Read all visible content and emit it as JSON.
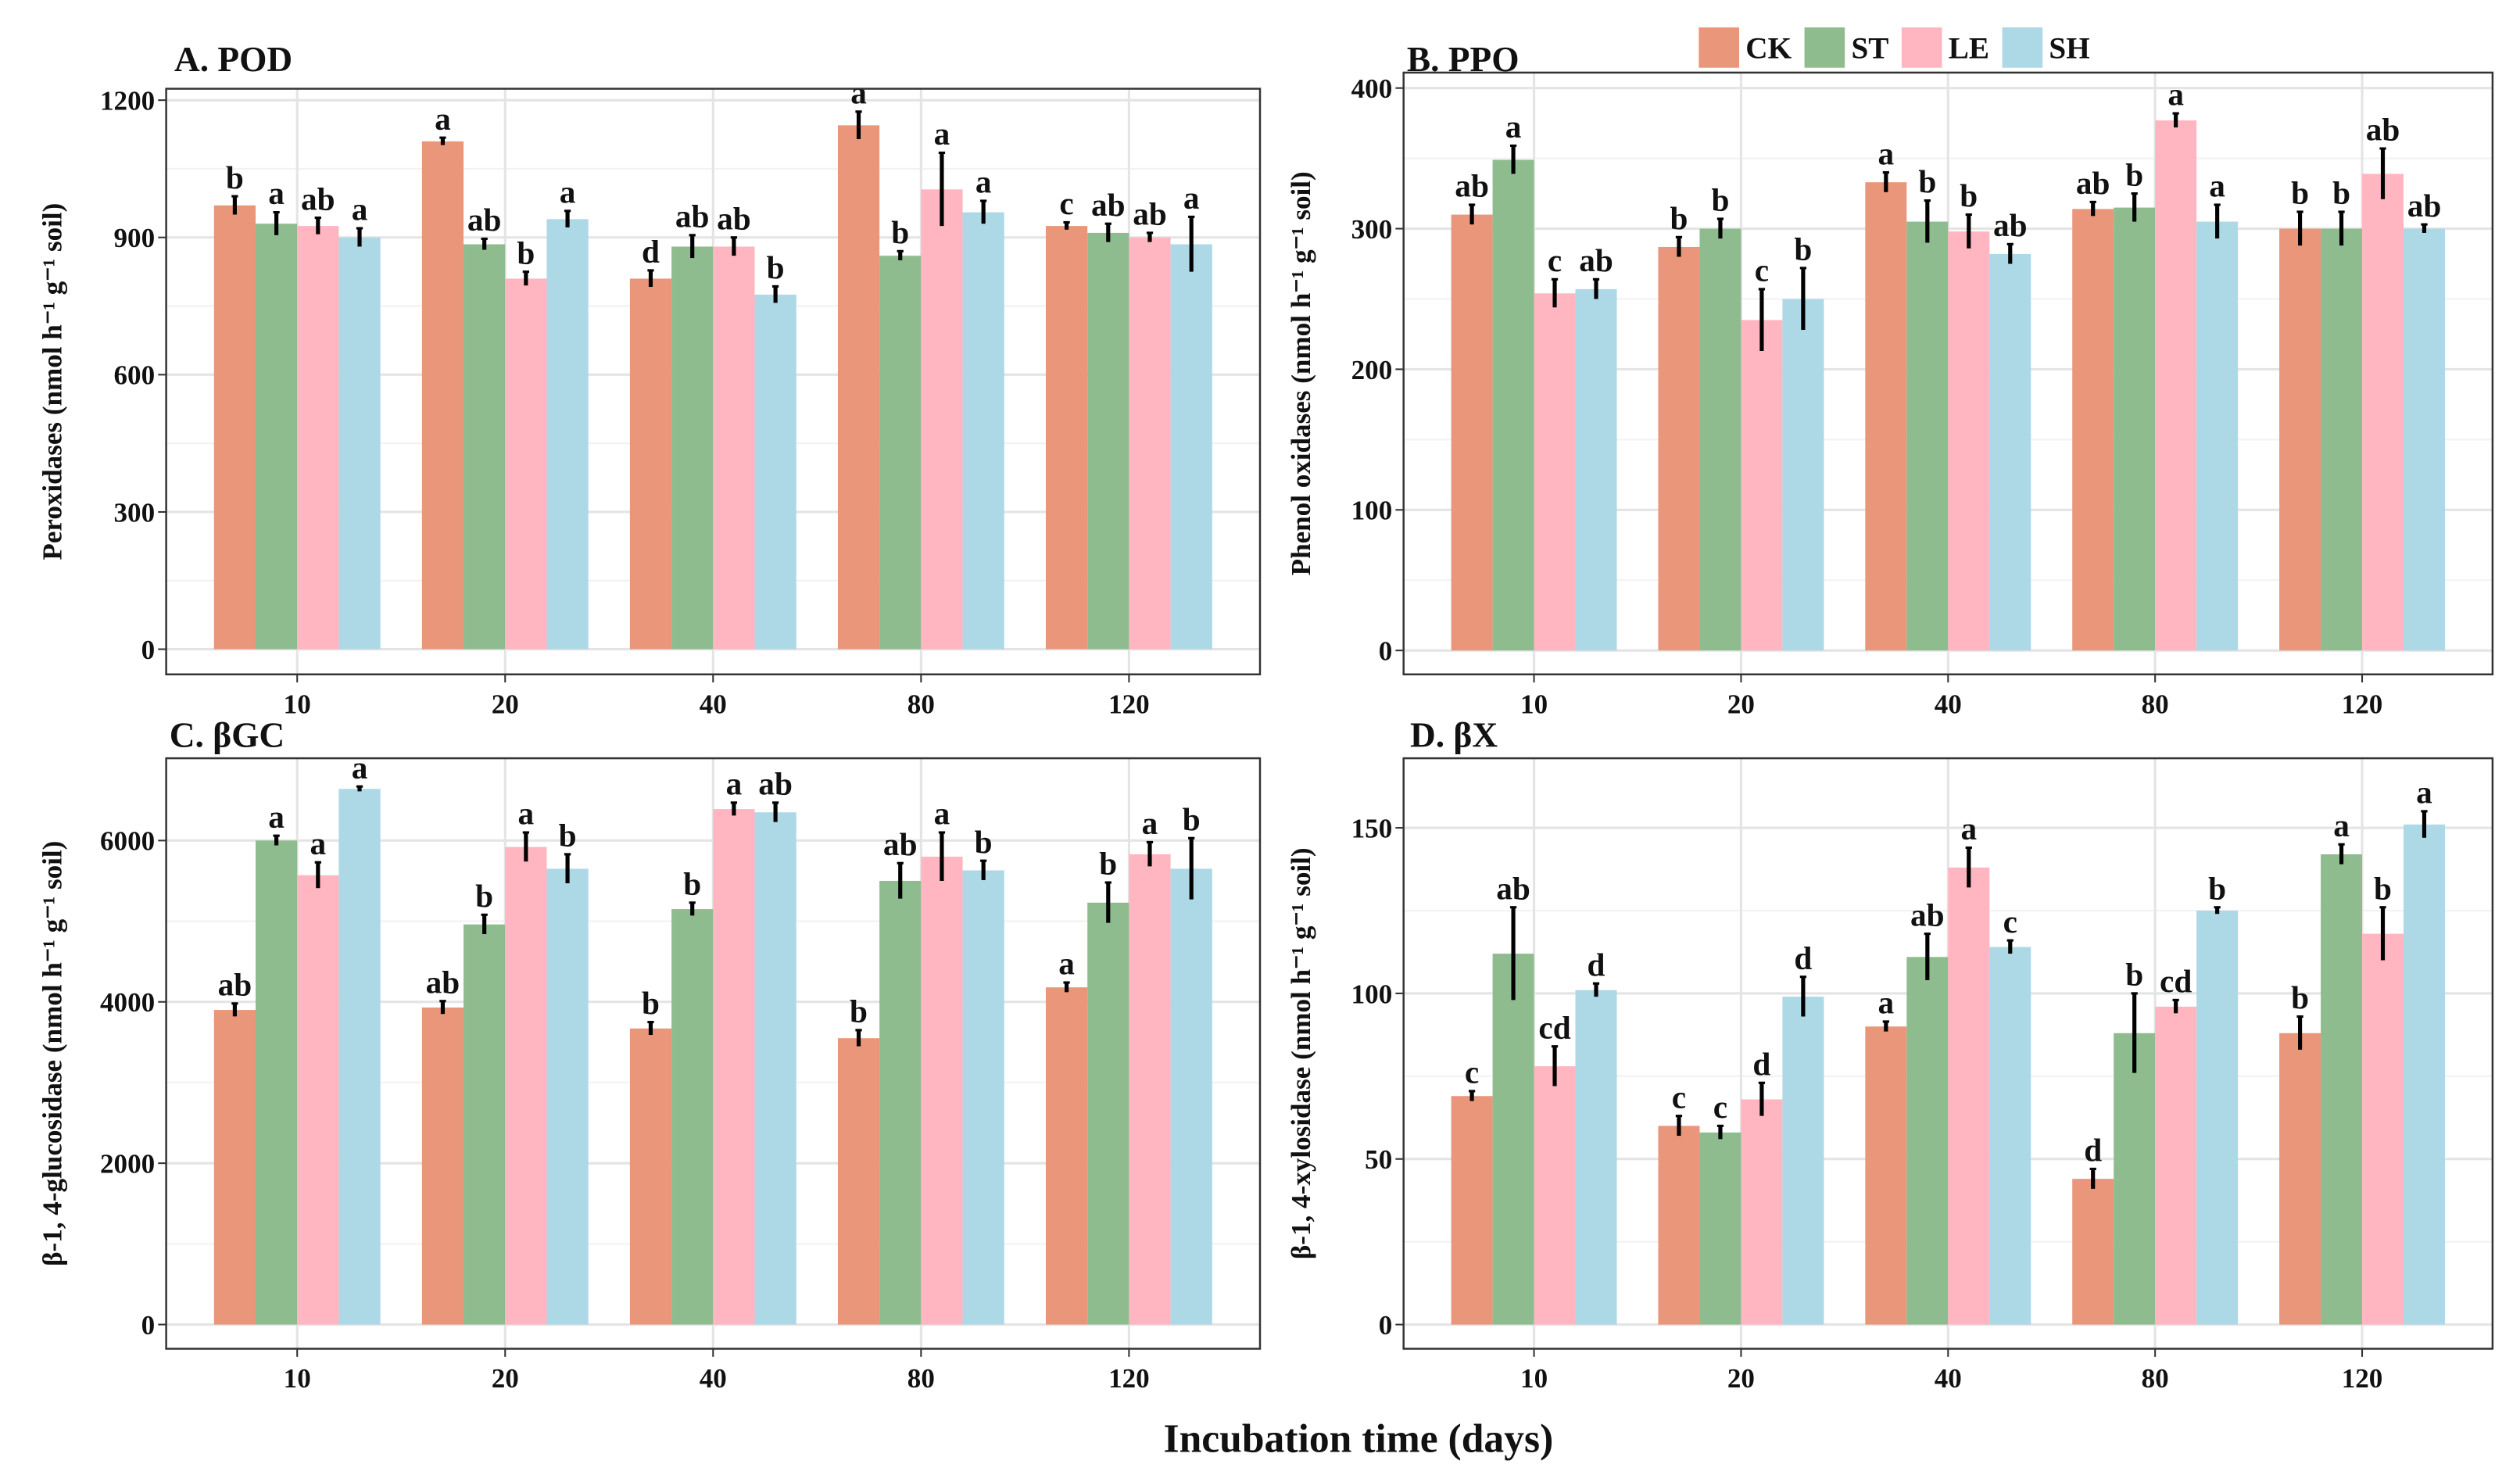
{
  "xlabel": "Incubation time (days)",
  "chart_data": [
    {
      "type": "bar",
      "title": "A. POD",
      "ylabel": "Peroxidases  (nmol h⁻¹ g⁻¹ soil)",
      "categories": [
        "10",
        "20",
        "40",
        "80",
        "120"
      ],
      "ylim": [
        -55,
        1225
      ],
      "yticks": [
        0,
        300,
        600,
        900,
        1200
      ],
      "grid": true,
      "series": [
        {
          "name": "CK",
          "color": "#e9967a",
          "values": [
            970,
            1110,
            810,
            1145,
            925
          ],
          "errors": [
            20,
            8,
            18,
            30,
            8
          ],
          "letters": [
            "b",
            "a",
            "d",
            "a",
            "c"
          ]
        },
        {
          "name": "ST",
          "color": "#8fbc8f",
          "values": [
            930,
            885,
            880,
            860,
            910
          ],
          "errors": [
            25,
            12,
            25,
            10,
            20
          ],
          "letters": [
            "a",
            "ab",
            "ab",
            "b",
            "ab"
          ]
        },
        {
          "name": "LE",
          "color": "#ffb6c1",
          "values": [
            925,
            810,
            880,
            1005,
            900
          ],
          "errors": [
            18,
            15,
            20,
            80,
            10
          ],
          "letters": [
            "ab",
            "b",
            "ab",
            "a",
            "ab"
          ]
        },
        {
          "name": "SH",
          "color": "#add8e6",
          "values": [
            900,
            940,
            775,
            955,
            885
          ],
          "errors": [
            20,
            18,
            18,
            25,
            60
          ],
          "letters": [
            "a",
            "a",
            "b",
            "a",
            "a"
          ]
        }
      ]
    },
    {
      "type": "bar",
      "title": "B. PPO",
      "ylabel": "Phenol oxidases  (nmol h⁻¹ g⁻¹ soil)",
      "categories": [
        "10",
        "20",
        "40",
        "80",
        "120"
      ],
      "ylim": [
        -17,
        411
      ],
      "yticks": [
        0,
        100,
        200,
        300,
        400
      ],
      "grid": true,
      "series": [
        {
          "name": "CK",
          "color": "#e9967a",
          "values": [
            310,
            287,
            333,
            314,
            300
          ],
          "errors": [
            7,
            7,
            7,
            5,
            12
          ],
          "letters": [
            "ab",
            "b",
            "a",
            "ab",
            "b"
          ]
        },
        {
          "name": "ST",
          "color": "#8fbc8f",
          "values": [
            349,
            300,
            305,
            315,
            300
          ],
          "errors": [
            10,
            7,
            15,
            10,
            12
          ],
          "letters": [
            "a",
            "b",
            "b",
            "b",
            "b"
          ]
        },
        {
          "name": "LE",
          "color": "#ffb6c1",
          "values": [
            254,
            235,
            298,
            377,
            339
          ],
          "errors": [
            10,
            22,
            12,
            5,
            18
          ],
          "letters": [
            "c",
            "c",
            "b",
            "a",
            "ab"
          ]
        },
        {
          "name": "SH",
          "color": "#add8e6",
          "values": [
            257,
            250,
            282,
            305,
            300
          ],
          "errors": [
            7,
            22,
            7,
            12,
            3
          ],
          "letters": [
            "ab",
            "b",
            "ab",
            "a",
            "ab"
          ]
        }
      ]
    },
    {
      "type": "bar",
      "title": "C. βGC",
      "ylabel": "β-1, 4-glucosidase  (nmol h⁻¹ g⁻¹ soil)",
      "categories": [
        "10",
        "20",
        "40",
        "80",
        "120"
      ],
      "ylim": [
        -300,
        7020
      ],
      "yticks": [
        0,
        2000,
        4000,
        6000
      ],
      "grid": true,
      "series": [
        {
          "name": "CK",
          "color": "#e9967a",
          "values": [
            3900,
            3930,
            3670,
            3550,
            4180
          ],
          "errors": [
            80,
            80,
            80,
            100,
            60
          ],
          "letters": [
            "ab",
            "ab",
            "b",
            "b",
            "a"
          ]
        },
        {
          "name": "ST",
          "color": "#8fbc8f",
          "values": [
            6000,
            4960,
            5150,
            5500,
            5230
          ],
          "errors": [
            60,
            120,
            80,
            220,
            250
          ],
          "letters": [
            "a",
            "b",
            "b",
            "ab",
            "b"
          ]
        },
        {
          "name": "LE",
          "color": "#ffb6c1",
          "values": [
            5570,
            5920,
            6390,
            5800,
            5830
          ],
          "errors": [
            160,
            180,
            80,
            300,
            150
          ],
          "letters": [
            "a",
            "a",
            "a",
            "a",
            "a"
          ]
        },
        {
          "name": "SH",
          "color": "#add8e6",
          "values": [
            6640,
            5650,
            6350,
            5630,
            5650
          ],
          "errors": [
            30,
            180,
            120,
            120,
            380
          ],
          "letters": [
            "a",
            "b",
            "ab",
            "b",
            "b"
          ]
        }
      ]
    },
    {
      "type": "bar",
      "title": "D. βX",
      "ylabel": "β-1, 4-xylosidase (nmol h⁻¹ g⁻¹ soil)",
      "categories": [
        "10",
        "20",
        "40",
        "80",
        "120"
      ],
      "ylim": [
        -7.3,
        171
      ],
      "yticks": [
        0,
        50,
        100,
        150
      ],
      "grid": true,
      "series": [
        {
          "name": "CK",
          "color": "#e9967a",
          "values": [
            69,
            60,
            90,
            44,
            88
          ],
          "errors": [
            1.5,
            3,
            1.5,
            3,
            5
          ],
          "letters": [
            "c",
            "c",
            "a",
            "d",
            "b"
          ]
        },
        {
          "name": "ST",
          "color": "#8fbc8f",
          "values": [
            112,
            58,
            111,
            88,
            142
          ],
          "errors": [
            14,
            2,
            7,
            12,
            3
          ],
          "letters": [
            "ab",
            "c",
            "ab",
            "b",
            "a"
          ]
        },
        {
          "name": "LE",
          "color": "#ffb6c1",
          "values": [
            78,
            68,
            138,
            96,
            118
          ],
          "errors": [
            6,
            5,
            6,
            2,
            8
          ],
          "letters": [
            "cd",
            "d",
            "a",
            "cd",
            "b"
          ]
        },
        {
          "name": "SH",
          "color": "#add8e6",
          "values": [
            101,
            99,
            114,
            125,
            151
          ],
          "errors": [
            2,
            6,
            2,
            1,
            4
          ],
          "letters": [
            "d",
            "d",
            "c",
            "b",
            "a"
          ]
        }
      ]
    }
  ]
}
